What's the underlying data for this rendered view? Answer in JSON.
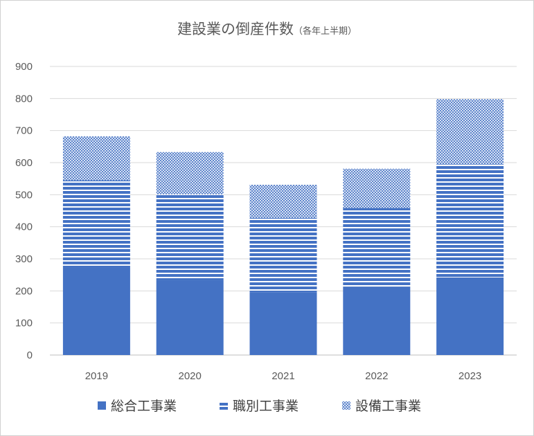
{
  "title": "建設業の倒産件数",
  "subtitle": "（各年上半期）",
  "chart_data": {
    "type": "bar",
    "stacked": true,
    "categories": [
      "2019",
      "2020",
      "2021",
      "2022",
      "2023"
    ],
    "series": [
      {
        "name": "総合工事業",
        "values": [
          273,
          231,
          196,
          212,
          242
        ],
        "color": "#4472C4",
        "pattern": "solid"
      },
      {
        "name": "職別工事業",
        "values": [
          272,
          270,
          232,
          247,
          353
        ],
        "color": "#4472C4",
        "pattern": "horizontal-stripes"
      },
      {
        "name": "設備工事業",
        "values": [
          137,
          132,
          103,
          122,
          203
        ],
        "color": "#4472C4",
        "pattern": "cross-hatch"
      }
    ],
    "ylim": [
      0,
      900
    ],
    "yticks": [
      0,
      100,
      200,
      300,
      400,
      500,
      600,
      700,
      800,
      900
    ],
    "grid": true,
    "legend": "bottom"
  }
}
